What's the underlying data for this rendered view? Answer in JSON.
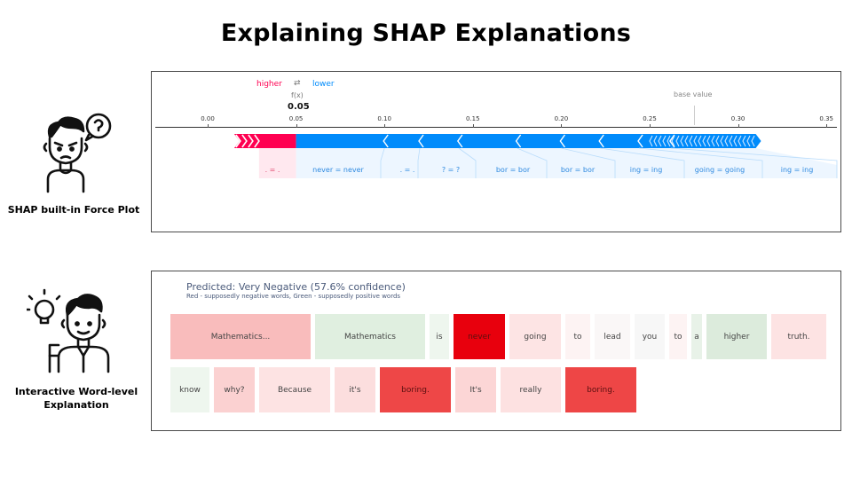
{
  "page": {
    "title": "Explaining SHAP Explanations"
  },
  "force_section": {
    "label": "SHAP built-in Force Plot",
    "icon": "confused-person-icon",
    "higher": "higher",
    "lower": "lower",
    "fx_label": "f(x)",
    "fx_value": "0.05",
    "base_value_label": "base value",
    "colors": {
      "higher": "#ff0051",
      "lower": "#008bfb"
    }
  },
  "chart_data": {
    "type": "force",
    "x_ticks": [
      "0.00",
      "0.05",
      "0.10",
      "0.15",
      "0.20",
      "0.25",
      "0.30",
      "0.35"
    ],
    "xlim": [
      0.0,
      0.35
    ],
    "output_value": 0.05,
    "base_value": 0.275,
    "positive_features": [
      {
        "label": ". = .",
        "from": 0.015,
        "to": 0.05
      }
    ],
    "negative_features": [
      {
        "label": "never = never",
        "from": 0.05,
        "to": 0.1
      },
      {
        "label": ". = .",
        "from": 0.1,
        "to": 0.12
      },
      {
        "label": "? = ?",
        "from": 0.12,
        "to": 0.142
      },
      {
        "label": "bor = bor",
        "from": 0.142,
        "to": 0.175
      },
      {
        "label": "bor = bor",
        "from": 0.175,
        "to": 0.2
      },
      {
        "label": "ing = ing",
        "from": 0.2,
        "to": 0.222
      },
      {
        "label": "going = going",
        "from": 0.222,
        "to": 0.244
      },
      {
        "label": "ing = ing",
        "from": 0.244,
        "to": 0.262
      },
      {
        "label": "",
        "from": 0.262,
        "to": 0.31
      }
    ]
  },
  "word_section": {
    "label": "Interactive Word-level Explanation",
    "icon": "idea-person-icon",
    "predicted": "Predicted: Very Negative (57.6% confidence)",
    "legend": "Red - supposedly negative words, Green - supposedly positive words",
    "rows": [
      [
        {
          "word": "Mathematics...",
          "color": "#f9bcbc"
        },
        {
          "word": "Mathematics",
          "color": "#e0efe0"
        },
        {
          "word": "is",
          "color": "#eef6ee"
        },
        {
          "word": "never",
          "color": "#e8000d"
        },
        {
          "word": "going",
          "color": "#fde4e4"
        },
        {
          "word": "to",
          "color": "#fdf3f3"
        },
        {
          "word": "lead",
          "color": "#faf7f7"
        },
        {
          "word": "you",
          "color": "#f7f7f7"
        },
        {
          "word": "to",
          "color": "#fdf3f3"
        },
        {
          "word": "a",
          "color": "#e8f2e8"
        },
        {
          "word": "higher",
          "color": "#dcebdc"
        },
        {
          "word": "truth.",
          "color": "#fde3e3"
        }
      ],
      [
        {
          "word": "know",
          "color": "#eef6ee"
        },
        {
          "word": "why?",
          "color": "#fbd1d1"
        },
        {
          "word": "Because",
          "color": "#fde3e3"
        },
        {
          "word": "it's",
          "color": "#fcdede"
        },
        {
          "word": "boring.",
          "color": "#ee4747"
        },
        {
          "word": "It's",
          "color": "#fcd6d6"
        },
        {
          "word": "really",
          "color": "#fde1e1"
        },
        {
          "word": "boring.",
          "color": "#ee4646"
        }
      ]
    ]
  }
}
